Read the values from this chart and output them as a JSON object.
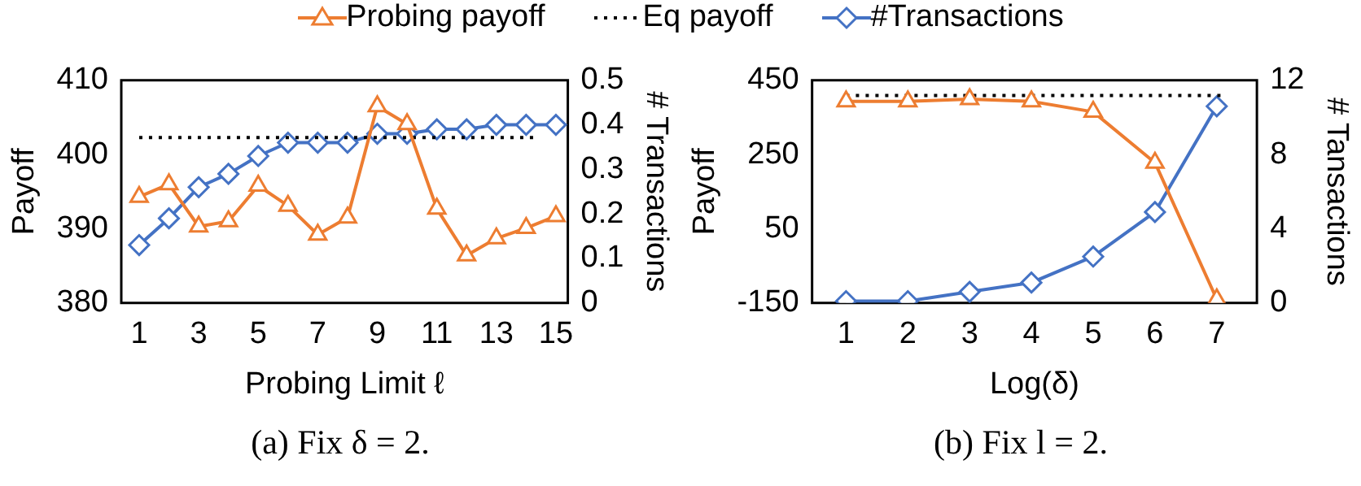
{
  "chart_data": [
    {
      "type": "line",
      "x": [
        1,
        2,
        3,
        4,
        5,
        6,
        7,
        8,
        9,
        10,
        11,
        12,
        13,
        14,
        15
      ],
      "xlim": [
        0.4,
        15.4
      ],
      "xticks": [
        1,
        3,
        5,
        7,
        9,
        11,
        13,
        15
      ],
      "ylim": [
        380,
        410
      ],
      "yticks": [
        380,
        390,
        400,
        410
      ],
      "y2lim": [
        0,
        0.5
      ],
      "y2ticks": [
        0,
        0.1,
        0.2,
        0.3,
        0.4,
        0.5
      ],
      "xlabel": "Probing Limit ℓ",
      "ylabel": "Payoff",
      "y2label": "# Transactions",
      "legend": "top",
      "grid": false,
      "annotations": [
        "(a) Fix δ = 2."
      ],
      "series": [
        {
          "name": "Probing payoff",
          "color": "#ed7d31",
          "marker": "triangle",
          "line_style": "solid",
          "values": [
            394.3,
            396.0,
            390.3,
            391.0,
            395.8,
            393.1,
            389.2,
            391.5,
            406.5,
            404.1,
            392.7,
            386.4,
            388.7,
            390.1,
            391.7
          ]
        },
        {
          "name": "Eq payoff",
          "color": "#000000",
          "marker": "none",
          "line_style": "dotted",
          "x": [
            1,
            14.4
          ],
          "values": [
            402.3,
            402.3
          ]
        },
        {
          "name": "#Transactions",
          "color": "#4472c4",
          "marker": "diamond",
          "line_style": "solid",
          "axis": "y2",
          "values": [
            0.13,
            0.19,
            0.26,
            0.29,
            0.33,
            0.36,
            0.36,
            0.36,
            0.38,
            0.38,
            0.39,
            0.39,
            0.4,
            0.4,
            0.4
          ]
        }
      ]
    },
    {
      "type": "line",
      "x": [
        1,
        2,
        3,
        4,
        5,
        6,
        7
      ],
      "xlim": [
        0.45,
        7.65
      ],
      "xticks": [
        1,
        2,
        3,
        4,
        5,
        6,
        7
      ],
      "ylim": [
        -150,
        450
      ],
      "yticks": [
        -150,
        50,
        250,
        450
      ],
      "y2lim": [
        0,
        12
      ],
      "y2ticks": [
        0,
        4,
        8,
        12
      ],
      "xlabel": "Log(δ)",
      "ylabel": "Payoff",
      "y2label": "# Tansactions",
      "grid": false,
      "annotations": [
        "(b) Fix l = 2."
      ],
      "series": [
        {
          "color": "#ed7d31",
          "marker": "triangle",
          "line_style": "solid",
          "values": [
            393,
            393,
            399,
            393,
            365,
            228,
            -140
          ]
        },
        {
          "color": "#000000",
          "marker": "none",
          "line_style": "dotted",
          "x": [
            1,
            7.1
          ],
          "values": [
            409,
            409
          ]
        },
        {
          "color": "#4472c4",
          "marker": "diamond",
          "line_style": "solid",
          "axis": "y2",
          "values": [
            0.1,
            0.1,
            0.6,
            1.1,
            2.5,
            4.9,
            10.6
          ]
        }
      ]
    }
  ]
}
